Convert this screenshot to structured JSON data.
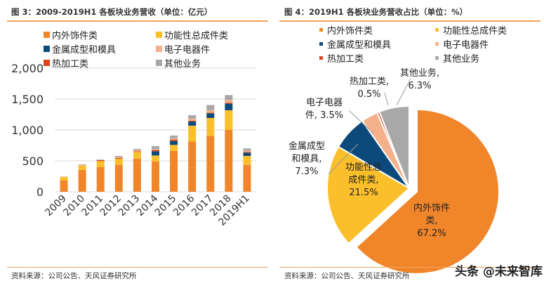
{
  "chart_data": [
    {
      "type": "bar",
      "stacked": true,
      "title": "图 3：2009-2019H1 各板块业务营收（单位：亿元）",
      "categories": [
        "2009",
        "2010",
        "2011",
        "2012",
        "2013",
        "2014",
        "2015",
        "2016",
        "2017",
        "2018",
        "2019H1"
      ],
      "ylim": [
        0,
        2000
      ],
      "yticks": [
        "0",
        "500",
        "1,000",
        "1,500",
        "2,000"
      ],
      "grid": true,
      "legend": "top",
      "series": [
        {
          "name": "内外饰件类",
          "color": "#f0852a",
          "values": [
            182,
            352,
            398,
            436,
            538,
            489,
            663,
            815,
            902,
            1000,
            436
          ]
        },
        {
          "name": "功能性总成件类",
          "color": "#fbbf2c",
          "values": [
            57,
            72,
            98,
            98,
            106,
            98,
            95,
            254,
            292,
            319,
            144
          ]
        },
        {
          "name": "金属成型和模具",
          "color": "#0d4a7c",
          "values": [
            0,
            0,
            0,
            0,
            0,
            69,
            64,
            68,
            76,
            106,
            53
          ]
        },
        {
          "name": "热加工类",
          "color": "#d9441c",
          "values": [
            0,
            0,
            15,
            11,
            11,
            19,
            19,
            11,
            8,
            15,
            11
          ]
        },
        {
          "name": "电子电器件",
          "color": "#f5b08c",
          "values": [
            4,
            12,
            4,
            16,
            19,
            15,
            23,
            34,
            42,
            45,
            19
          ]
        },
        {
          "name": "其他业务",
          "color": "#a8a8a8",
          "values": [
            3,
            7,
            8,
            19,
            19,
            49,
            46,
            57,
            83,
            80,
            38
          ]
        }
      ]
    },
    {
      "type": "pie",
      "title": "图 4：2019H1 各板块业务营收占比（单位：%）",
      "legend": "top",
      "slices": [
        {
          "name": "内外饰件类",
          "value": 67.2,
          "label": "内外饰件\n类,\n67.2%",
          "color": "#f0852a",
          "exploded": true
        },
        {
          "name": "功能性总成件类",
          "value": 21.5,
          "label": "功能性总\n成件类,\n21.5%",
          "color": "#fbbf2c"
        },
        {
          "name": "金属成型和模具",
          "value": 7.3,
          "label": "金属成型\n和模具,\n7.3%",
          "color": "#0d4a7c"
        },
        {
          "name": "电子电器件",
          "value": 3.5,
          "label": "电子电器\n件, 3.5%",
          "color": "#f5b08c"
        },
        {
          "name": "热加工类",
          "value": 0.5,
          "label": "热加工类,\n0.5%",
          "color": "#d9441c"
        },
        {
          "name": "其他业务",
          "value": 6.3,
          "label": "其他业务,\n6.3%",
          "color": "#a8a8a8"
        }
      ]
    }
  ],
  "source_left": "资料来源：公司公告、天风证券研究所",
  "source_right": "资料来源：公司公告、天风证券研究所",
  "watermark": "头条 @未来智库"
}
